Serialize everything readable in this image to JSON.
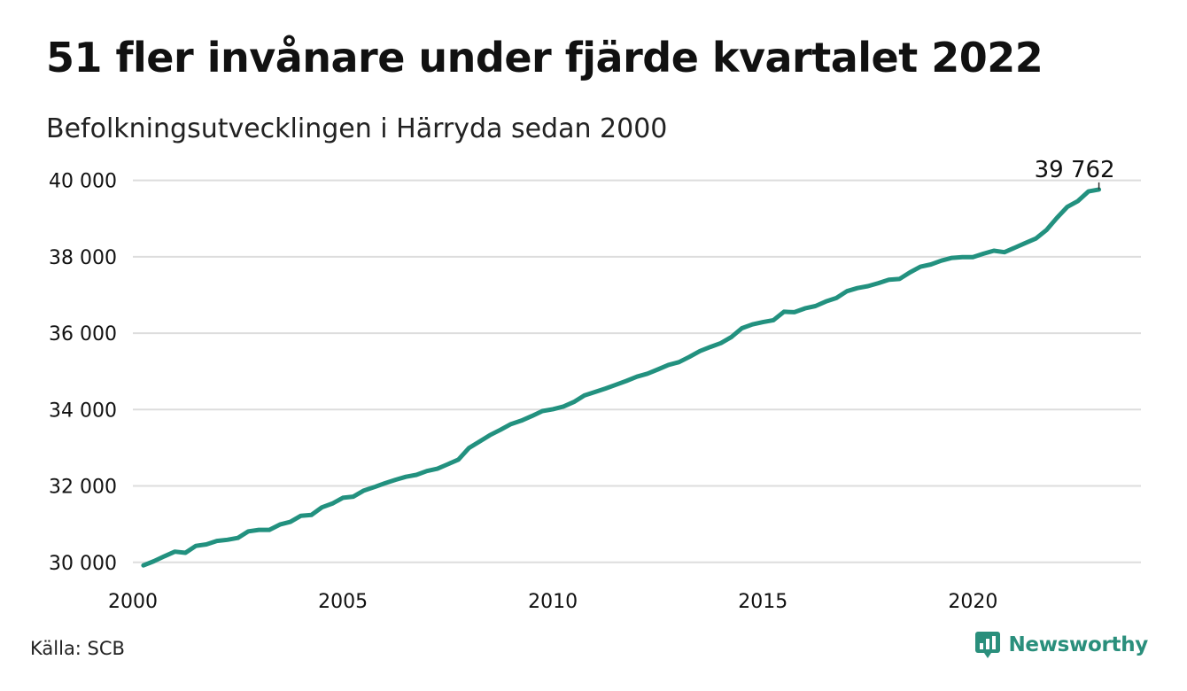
{
  "title": "51 fler invånare under fjärde kvartalet 2022",
  "subtitle": "Befolkningsutvecklingen i Härryda sedan 2000",
  "source": "Källa: SCB",
  "brand": {
    "name": "Newsworthy",
    "icon": "newsworthy-logo-icon",
    "color": "#2a8f7c"
  },
  "colors": {
    "line": "#22917f",
    "grid": "#dddddd",
    "text": "#111111"
  },
  "chart_data": {
    "type": "line",
    "title": "51 fler invånare under fjärde kvartalet 2022",
    "subtitle": "Befolkningsutvecklingen i Härryda sedan 2000",
    "xlabel": "",
    "ylabel": "",
    "xlim": [
      2000,
      2024
    ],
    "ylim": [
      29600,
      40200
    ],
    "x_ticks": [
      {
        "value": 2000,
        "label": "2000"
      },
      {
        "value": 2005,
        "label": "2005"
      },
      {
        "value": 2010,
        "label": "2010"
      },
      {
        "value": 2015,
        "label": "2015"
      },
      {
        "value": 2020,
        "label": "2020"
      }
    ],
    "y_ticks": [
      {
        "value": 30000,
        "label": "30 000"
      },
      {
        "value": 32000,
        "label": "32 000"
      },
      {
        "value": 34000,
        "label": "34 000"
      },
      {
        "value": 36000,
        "label": "36 000"
      },
      {
        "value": 38000,
        "label": "38 000"
      },
      {
        "value": 40000,
        "label": "40 000"
      }
    ],
    "grid": true,
    "legend": "none",
    "annotation": {
      "label": "39 762",
      "x": 2023.0,
      "y": 39762
    },
    "series": [
      {
        "x": [
          2000.25,
          2000.5,
          2000.75,
          2001.0,
          2001.25,
          2001.5,
          2001.75,
          2002.0,
          2002.25,
          2002.5,
          2002.75,
          2003.0,
          2003.25,
          2003.5,
          2003.75,
          2004.0,
          2004.25,
          2004.5,
          2004.75,
          2005.0,
          2005.25,
          2005.5,
          2005.75,
          2006.0,
          2006.25,
          2006.5,
          2006.75,
          2007.0,
          2007.25,
          2007.5,
          2007.75,
          2008.0,
          2008.25,
          2008.5,
          2008.75,
          2009.0,
          2009.25,
          2009.5,
          2009.75,
          2010.0,
          2010.25,
          2010.5,
          2010.75,
          2011.0,
          2011.25,
          2011.5,
          2011.75,
          2012.0,
          2012.25,
          2012.5,
          2012.75,
          2013.0,
          2013.25,
          2013.5,
          2013.75,
          2014.0,
          2014.25,
          2014.5,
          2014.75,
          2015.0,
          2015.25,
          2015.5,
          2015.75,
          2016.0,
          2016.25,
          2016.5,
          2016.75,
          2017.0,
          2017.25,
          2017.5,
          2017.75,
          2018.0,
          2018.25,
          2018.5,
          2018.75,
          2019.0,
          2019.25,
          2019.5,
          2019.75,
          2020.0,
          2020.25,
          2020.5,
          2020.75,
          2021.0,
          2021.25,
          2021.5,
          2021.75,
          2022.0,
          2022.25,
          2022.5,
          2022.75,
          2023.0
        ],
        "y": [
          29920,
          30030,
          30160,
          30280,
          30250,
          30430,
          30470,
          30560,
          30590,
          30640,
          30810,
          30850,
          30850,
          30990,
          31060,
          31220,
          31240,
          31440,
          31540,
          31690,
          31720,
          31880,
          31970,
          32070,
          32160,
          32240,
          32290,
          32390,
          32450,
          32570,
          32690,
          32990,
          33160,
          33330,
          33470,
          33620,
          33710,
          33830,
          33960,
          34010,
          34080,
          34200,
          34370,
          34460,
          34550,
          34650,
          34750,
          34860,
          34940,
          35050,
          35170,
          35240,
          35380,
          35530,
          35640,
          35740,
          35900,
          36130,
          36230,
          36290,
          36340,
          36560,
          36550,
          36650,
          36710,
          36830,
          36920,
          37100,
          37180,
          37230,
          37310,
          37400,
          37420,
          37590,
          37740,
          37800,
          37900,
          37970,
          37990,
          37990,
          38080,
          38160,
          38120,
          38240,
          38360,
          38480,
          38700,
          39020,
          39310,
          39460,
          39711,
          39762
        ]
      }
    ]
  }
}
